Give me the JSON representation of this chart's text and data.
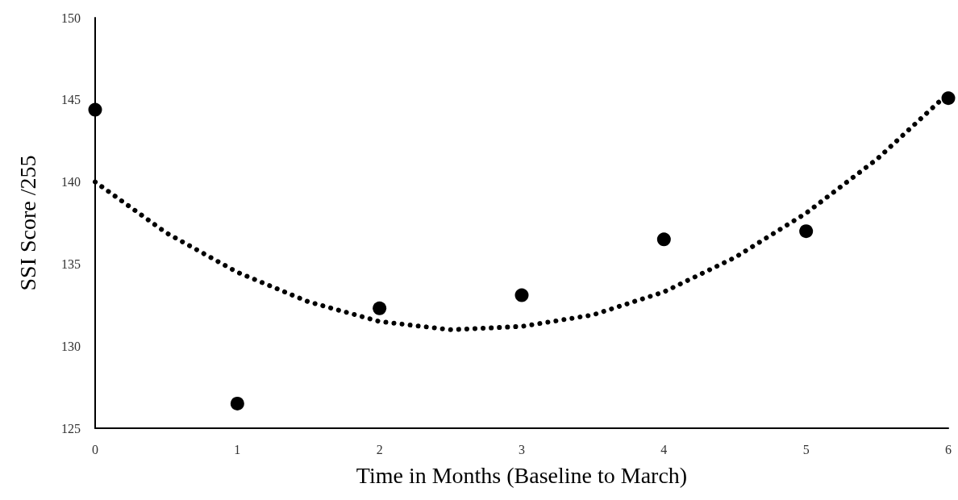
{
  "chart_data": {
    "type": "scatter",
    "xlabel": "Time in Months (Baseline to March)",
    "ylabel": "SSI Score /255",
    "xlim": [
      0,
      6
    ],
    "xticks": [
      0,
      1,
      2,
      3,
      4,
      5,
      6
    ],
    "ylim": [
      125,
      150
    ],
    "yticks": [
      125,
      130,
      135,
      140,
      145,
      150
    ],
    "grid": false,
    "series": [
      {
        "color": "#000000",
        "marker": "circle",
        "x": [
          0,
          1,
          2,
          3,
          4,
          5,
          6
        ],
        "values": [
          144.4,
          126.5,
          132.3,
          133.1,
          136.5,
          137.0,
          145.1
        ]
      },
      {
        "type": "line",
        "color": "#000000",
        "marker": "none",
        "line_style": "dotted",
        "x": [
          0,
          0.5,
          1,
          1.5,
          2,
          2.5,
          3,
          3.5,
          4,
          4.5,
          5,
          5.5,
          6
        ],
        "values": [
          140.0,
          136.9,
          134.5,
          132.7,
          131.5,
          131.0,
          131.2,
          131.9,
          133.3,
          135.4,
          138.1,
          141.4,
          145.4
        ]
      }
    ]
  }
}
